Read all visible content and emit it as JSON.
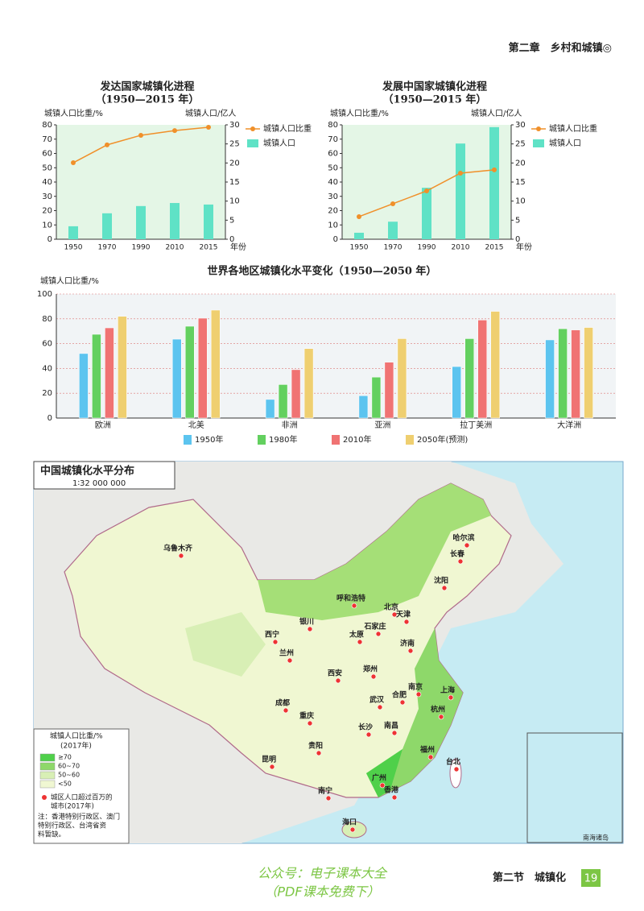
{
  "header": {
    "chapter": "第二章　乡村和城镇◎"
  },
  "chart_data": [
    {
      "type": "combo",
      "title": "发达国家城镇化进程",
      "subtitle": "（1950—2015 年）",
      "ylabel": "城镇人口比重/%",
      "y2label": "城镇人口/亿人",
      "xlabel": "年份",
      "categories": [
        "1950",
        "1970",
        "1990",
        "2010",
        "2015"
      ],
      "ylim": [
        0,
        80
      ],
      "yticks": [
        0,
        10,
        20,
        30,
        40,
        50,
        60,
        70,
        80
      ],
      "y2lim": [
        0,
        30
      ],
      "y2ticks": [
        0,
        5,
        10,
        15,
        20,
        25,
        30
      ],
      "series": [
        {
          "name": "城镇人口比重",
          "kind": "line",
          "color": "#f0902a",
          "values": [
            53.5,
            66,
            72.7,
            76,
            78.3
          ]
        },
        {
          "name": "城镇人口",
          "kind": "bar",
          "axis": "y2",
          "color": "#5fe2c6",
          "values": [
            3.4,
            6.8,
            8.7,
            9.5,
            9.1
          ]
        }
      ],
      "grid": false
    },
    {
      "type": "combo",
      "title": "发展中国家城镇化进程",
      "subtitle": "（1950—2015 年）",
      "ylabel": "城镇人口比重/%",
      "y2label": "城镇人口/亿人",
      "xlabel": "年份",
      "categories": [
        "1950",
        "1970",
        "1990",
        "2010",
        "2015"
      ],
      "ylim": [
        0,
        80
      ],
      "yticks": [
        0,
        10,
        20,
        30,
        40,
        50,
        60,
        70,
        80
      ],
      "y2lim": [
        0,
        30
      ],
      "y2ticks": [
        0,
        5,
        10,
        15,
        20,
        25,
        30
      ],
      "series": [
        {
          "name": "城镇人口比重",
          "kind": "line",
          "color": "#f0902a",
          "values": [
            15.8,
            24.8,
            33.8,
            46.2,
            48.5
          ]
        },
        {
          "name": "城镇人口",
          "kind": "bar",
          "axis": "y2",
          "color": "#5fe2c6",
          "values": [
            1.7,
            4.6,
            13.5,
            25.1,
            29.4
          ]
        }
      ],
      "grid": false
    },
    {
      "type": "bar",
      "title": "世界各地区城镇化水平变化（1950—2050 年）",
      "ylabel": "城镇人口比重/%",
      "categories": [
        "欧洲",
        "北美",
        "非洲",
        "亚洲",
        "拉丁美洲",
        "大洋洲"
      ],
      "ylim": [
        0,
        100
      ],
      "yticks": [
        0,
        20,
        40,
        60,
        80,
        100
      ],
      "series": [
        {
          "name": "1950年",
          "color": "#5cc4ef",
          "values": [
            52,
            63.6,
            15,
            18,
            41.5,
            63
          ]
        },
        {
          "name": "1980年",
          "color": "#63d05f",
          "values": [
            67.5,
            74,
            27,
            33,
            64,
            72
          ]
        },
        {
          "name": "2010年",
          "color": "#f07373",
          "values": [
            72.7,
            80.5,
            39,
            45,
            79,
            71
          ]
        },
        {
          "name": "2050年(预测)",
          "color": "#efcf70",
          "values": [
            82,
            87,
            56,
            64,
            86,
            73
          ]
        }
      ],
      "grid": true
    }
  ],
  "map": {
    "title": "中国城镇化水平分布",
    "scale": "1∶32 000 000",
    "legend": {
      "title": "城镇人口比重/%",
      "subtitle": "(2017年)",
      "items": [
        "≥70",
        "60~70",
        "50~60",
        "<50"
      ],
      "city_note": [
        "城区人口超过百万的",
        "城市(2017年)"
      ],
      "note": [
        "注：香港特别行政区、澳门",
        "特别行政区、台湾省资",
        "料暂缺。"
      ]
    },
    "cities": [
      "乌鲁木齐",
      "哈尔滨",
      "长春",
      "沈阳",
      "呼和浩特",
      "北京",
      "天津",
      "石家庄",
      "太原",
      "济南",
      "银川",
      "西宁",
      "兰州",
      "西安",
      "郑州",
      "武汉",
      "合肥",
      "南京",
      "上海",
      "杭州",
      "成都",
      "重庆",
      "贵阳",
      "长沙",
      "南昌",
      "福州",
      "台北",
      "昆明",
      "南宁",
      "广州",
      "香港",
      "海口"
    ],
    "inset": "南海诸岛"
  },
  "footer": {
    "section": "第二节　城镇化",
    "page": "19",
    "watermark": [
      "公众号：电子课本大全",
      "（PDF课本免费下）"
    ]
  }
}
